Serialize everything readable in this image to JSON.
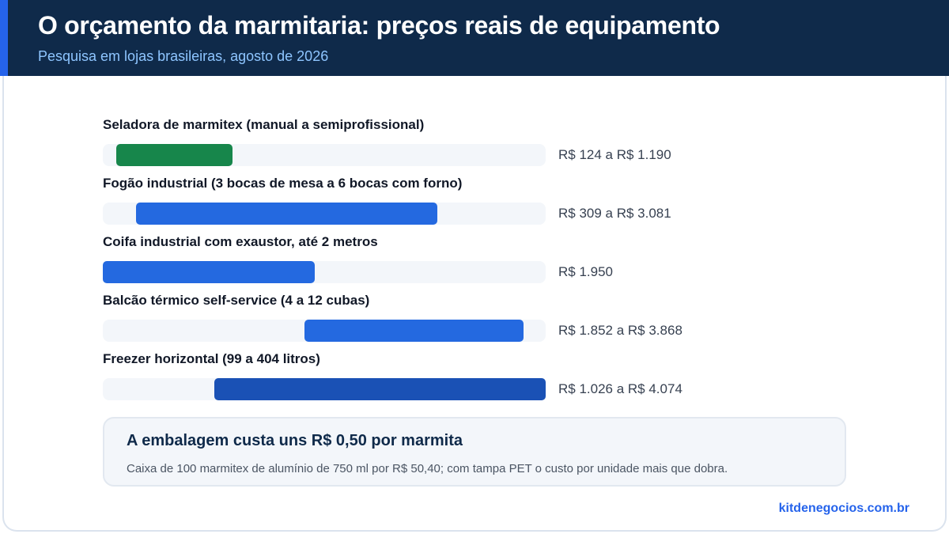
{
  "header": {
    "title": "O orçamento da marmitaria: preços reais de equipamento",
    "subtitle": "Pesquisa em lojas brasileiras, agosto de 2026"
  },
  "chart_data": {
    "type": "bar",
    "orientation": "horizontal-range",
    "title": "O orçamento da marmitaria: preços reais de equipamento",
    "subtitle": "Pesquisa em lojas brasileiras, agosto de 2026",
    "xlim": [
      0,
      4074
    ],
    "grid": false,
    "categories": [
      "Seladora de marmitex (manual a semiprofissional)",
      "Fogão industrial (3 bocas de mesa a 6 bocas com forno)",
      "Coifa industrial com exaustor, até 2 metros",
      "Balcão térmico self-service (4 a 12 cubas)",
      "Freezer horizontal (99 a 404 litros)"
    ],
    "items": [
      {
        "label": "Seladora de marmitex (manual a semiprofissional)",
        "min": 124,
        "max": 1190,
        "value_text": "R$ 124 a R$ 1.190",
        "color": "#17864b"
      },
      {
        "label": "Fogão industrial (3 bocas de mesa a 6 bocas com forno)",
        "min": 309,
        "max": 3081,
        "value_text": "R$ 309 a R$ 3.081",
        "color": "#2469e0"
      },
      {
        "label": "Coifa industrial com exaustor, até 2 metros",
        "min": 0,
        "max": 1950,
        "value_text": "R$ 1.950",
        "color": "#2469e0"
      },
      {
        "label": "Balcão térmico self-service (4 a 12 cubas)",
        "min": 1852,
        "max": 3868,
        "value_text": "R$ 1.852 a R$ 3.868",
        "color": "#2469e0"
      },
      {
        "label": "Freezer horizontal (99 a 404 litros)",
        "min": 1026,
        "max": 4074,
        "value_text": "R$ 1.026 a R$ 4.074",
        "color": "#1a51b5"
      }
    ]
  },
  "note": {
    "title": "A embalagem custa uns R$ 0,50 por marmita",
    "text": "Caixa de 100 marmitex de alumínio de 750 ml por R$ 50,40; com tampa PET o custo por unidade mais que dobra."
  },
  "footer": {
    "source": "kitdenegocios.com.br"
  }
}
